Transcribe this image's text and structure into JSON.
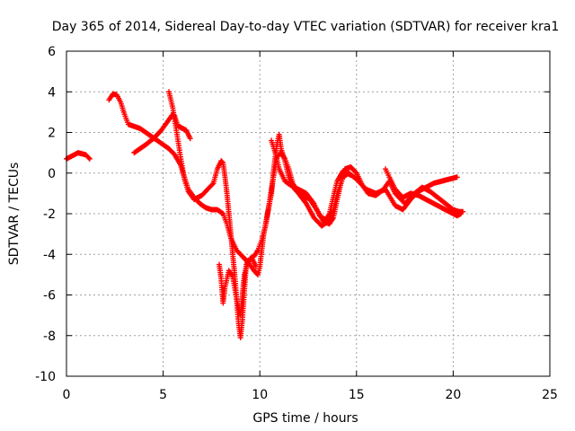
{
  "chart_data": {
    "type": "scatter",
    "title": "Day 365 of 2014, Sidereal Day-to-day VTEC variation (SDTVAR) for receiver kra1",
    "xlabel": "GPS time / hours",
    "ylabel": "SDTVAR / TECUs",
    "xlim": [
      0,
      25
    ],
    "ylim": [
      -10,
      6
    ],
    "xticks": [
      0,
      5,
      10,
      15,
      20,
      25
    ],
    "yticks": [
      -10,
      -8,
      -6,
      -4,
      -2,
      0,
      2,
      4,
      6
    ],
    "grid": true,
    "marker": "plus",
    "color": "#ff0000",
    "series": [
      {
        "segments": [
          [
            [
              0.0,
              0.7
            ],
            [
              0.2,
              0.8
            ],
            [
              0.4,
              0.9
            ],
            [
              0.6,
              1.0
            ],
            [
              0.8,
              0.95
            ],
            [
              1.0,
              0.9
            ],
            [
              1.2,
              0.7
            ]
          ],
          [
            [
              2.2,
              3.6
            ],
            [
              2.4,
              3.9
            ],
            [
              2.6,
              3.85
            ],
            [
              2.8,
              3.5
            ],
            [
              3.0,
              2.9
            ],
            [
              3.2,
              2.4
            ],
            [
              3.5,
              2.3
            ],
            [
              3.8,
              2.2
            ],
            [
              4.1,
              2.0
            ],
            [
              4.4,
              1.8
            ],
            [
              4.7,
              1.6
            ],
            [
              5.0,
              1.4
            ],
            [
              5.3,
              1.2
            ],
            [
              5.6,
              0.9
            ],
            [
              5.9,
              0.4
            ],
            [
              6.1,
              -0.2
            ],
            [
              6.3,
              -0.8
            ],
            [
              6.6,
              -1.2
            ],
            [
              6.9,
              -1.5
            ],
            [
              7.2,
              -1.7
            ],
            [
              7.5,
              -1.8
            ],
            [
              7.8,
              -1.8
            ],
            [
              8.1,
              -2.0
            ],
            [
              8.3,
              -2.5
            ],
            [
              8.5,
              -3.2
            ],
            [
              8.8,
              -3.8
            ],
            [
              9.1,
              -4.1
            ],
            [
              9.4,
              -4.4
            ],
            [
              9.7,
              -4.8
            ],
            [
              9.9,
              -5.0
            ],
            [
              10.0,
              -4.6
            ],
            [
              10.1,
              -3.8
            ],
            [
              10.2,
              -3.0
            ],
            [
              10.4,
              -2.0
            ],
            [
              10.6,
              -1.0
            ],
            [
              10.7,
              0.0
            ],
            [
              10.8,
              0.8
            ],
            [
              10.9,
              1.5
            ],
            [
              11.0,
              1.9
            ],
            [
              11.1,
              1.2
            ],
            [
              11.3,
              0.6
            ],
            [
              11.5,
              -0.2
            ],
            [
              11.8,
              -0.8
            ],
            [
              12.2,
              -1.1
            ],
            [
              12.6,
              -1.3
            ],
            [
              13.0,
              -1.9
            ],
            [
              13.3,
              -2.4
            ],
            [
              13.6,
              -2.5
            ],
            [
              13.8,
              -2.2
            ],
            [
              14.0,
              -1.3
            ],
            [
              14.2,
              -0.5
            ],
            [
              14.4,
              0.2
            ],
            [
              14.7,
              0.3
            ],
            [
              15.0,
              0.0
            ],
            [
              15.3,
              -0.6
            ],
            [
              15.6,
              -1.0
            ],
            [
              16.0,
              -1.1
            ],
            [
              16.4,
              -0.8
            ],
            [
              16.7,
              -0.4
            ],
            [
              17.0,
              -1.0
            ],
            [
              17.5,
              -1.5
            ],
            [
              18.0,
              -1.0
            ],
            [
              18.4,
              -0.7
            ],
            [
              18.8,
              -0.9
            ],
            [
              19.2,
              -1.2
            ],
            [
              19.6,
              -1.5
            ],
            [
              20.0,
              -1.8
            ],
            [
              20.3,
              -1.9
            ],
            [
              20.5,
              -1.9
            ]
          ],
          [
            [
              3.5,
              1.0
            ],
            [
              3.8,
              1.2
            ],
            [
              4.1,
              1.4
            ],
            [
              4.5,
              1.7
            ],
            [
              4.9,
              2.1
            ],
            [
              5.2,
              2.5
            ],
            [
              5.5,
              2.9
            ],
            [
              5.6,
              2.8
            ],
            [
              5.7,
              2.5
            ],
            [
              5.8,
              2.3
            ],
            [
              6.0,
              2.2
            ],
            [
              6.2,
              2.1
            ],
            [
              6.4,
              1.7
            ]
          ],
          [
            [
              5.3,
              4.0
            ],
            [
              5.5,
              3.2
            ],
            [
              5.7,
              2.0
            ],
            [
              5.9,
              0.8
            ],
            [
              6.1,
              -0.3
            ],
            [
              6.3,
              -0.9
            ],
            [
              6.6,
              -1.3
            ],
            [
              7.0,
              -1.1
            ],
            [
              7.3,
              -0.8
            ],
            [
              7.6,
              -0.5
            ],
            [
              7.8,
              0.2
            ],
            [
              8.0,
              0.6
            ],
            [
              8.1,
              0.5
            ],
            [
              8.2,
              -0.2
            ],
            [
              8.3,
              -1.0
            ],
            [
              8.4,
              -2.0
            ],
            [
              8.5,
              -3.0
            ],
            [
              8.6,
              -4.0
            ],
            [
              8.7,
              -5.0
            ],
            [
              8.8,
              -6.2
            ],
            [
              8.9,
              -7.4
            ],
            [
              9.0,
              -8.1
            ],
            [
              9.1,
              -7.2
            ],
            [
              9.2,
              -5.8
            ],
            [
              9.3,
              -4.5
            ],
            [
              9.5,
              -4.2
            ],
            [
              9.7,
              -4.1
            ],
            [
              9.9,
              -3.8
            ],
            [
              10.1,
              -3.3
            ],
            [
              10.3,
              -2.6
            ],
            [
              10.5,
              -1.4
            ],
            [
              10.7,
              -0.2
            ],
            [
              10.9,
              0.8
            ],
            [
              11.1,
              1.0
            ],
            [
              11.3,
              0.7
            ],
            [
              11.5,
              0.2
            ],
            [
              11.7,
              -0.5
            ],
            [
              12.0,
              -1.0
            ],
            [
              12.4,
              -1.5
            ],
            [
              12.8,
              -2.2
            ],
            [
              13.2,
              -2.6
            ],
            [
              13.5,
              -2.4
            ],
            [
              13.8,
              -1.8
            ],
            [
              14.0,
              -1.0
            ],
            [
              14.3,
              -0.2
            ],
            [
              14.6,
              0.0
            ],
            [
              15.0,
              -0.3
            ],
            [
              15.5,
              -0.8
            ],
            [
              16.0,
              -1.0
            ],
            [
              16.5,
              -0.8
            ],
            [
              17.0,
              -1.6
            ],
            [
              17.4,
              -1.8
            ],
            [
              17.8,
              -1.3
            ],
            [
              18.2,
              -0.9
            ],
            [
              18.6,
              -0.7
            ],
            [
              19.0,
              -0.5
            ],
            [
              19.4,
              -0.4
            ],
            [
              19.8,
              -0.3
            ],
            [
              20.2,
              -0.2
            ]
          ],
          [
            [
              7.9,
              -4.5
            ],
            [
              8.0,
              -5.2
            ],
            [
              8.1,
              -6.4
            ],
            [
              8.2,
              -5.6
            ],
            [
              8.4,
              -4.8
            ],
            [
              8.6,
              -5.1
            ],
            [
              8.8,
              -6.2
            ],
            [
              9.0,
              -7.0
            ],
            [
              9.1,
              -6.0
            ],
            [
              9.2,
              -5.0
            ],
            [
              9.4,
              -4.3
            ],
            [
              9.6,
              -4.2
            ],
            [
              9.8,
              -4.6
            ]
          ],
          [
            [
              10.6,
              1.6
            ],
            [
              10.8,
              1.0
            ],
            [
              11.0,
              0.2
            ],
            [
              11.3,
              -0.4
            ],
            [
              11.6,
              -0.6
            ],
            [
              12.0,
              -0.8
            ],
            [
              12.4,
              -1.0
            ],
            [
              12.8,
              -1.5
            ],
            [
              13.1,
              -2.1
            ],
            [
              13.4,
              -2.3
            ],
            [
              13.6,
              -2.0
            ],
            [
              13.8,
              -1.2
            ],
            [
              14.0,
              -0.4
            ],
            [
              14.3,
              0.1
            ],
            [
              14.7,
              -0.1
            ]
          ],
          [
            [
              16.5,
              0.2
            ],
            [
              16.7,
              -0.2
            ],
            [
              17.0,
              -0.8
            ],
            [
              17.4,
              -1.2
            ],
            [
              17.8,
              -1.0
            ],
            [
              18.2,
              -1.1
            ],
            [
              18.6,
              -1.3
            ],
            [
              19.0,
              -1.5
            ],
            [
              19.4,
              -1.7
            ],
            [
              19.8,
              -1.9
            ],
            [
              20.2,
              -2.1
            ],
            [
              20.4,
              -2.0
            ]
          ]
        ]
      }
    ]
  }
}
